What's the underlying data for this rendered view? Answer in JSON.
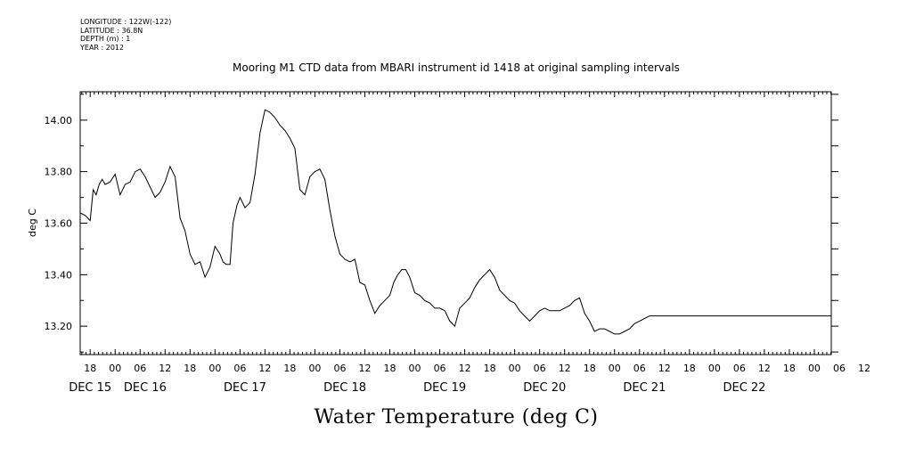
{
  "header_info": {
    "longitude": "LONGITUDE : 122W(-122)",
    "latitude": "LATITUDE : 36.8N",
    "depth": "DEPTH (m) : 1",
    "year": "YEAR : 2012"
  },
  "chart_data": {
    "type": "line",
    "title": "Mooring M1 CTD data from MBARI instrument id 1418 at original sampling intervals",
    "ylabel": "deg C",
    "xlabel": "Water Temperature (deg C)",
    "ylim": [
      13.09,
      14.11
    ],
    "xlim": [
      -0.1,
      7.42
    ],
    "yticks": [
      "13.20",
      "13.40",
      "13.60",
      "13.80",
      "14.00"
    ],
    "x_hour_labels": [
      "18",
      "00",
      "06",
      "12",
      "18",
      "00",
      "06",
      "12",
      "18",
      "00",
      "06",
      "12",
      "18",
      "00",
      "06",
      "12",
      "18",
      "00",
      "06",
      "12",
      "18",
      "00",
      "06",
      "12",
      "18",
      "00",
      "06",
      "12",
      "18",
      "00",
      "06",
      "12"
    ],
    "x_day_labels": [
      "DEC 15",
      "DEC 16",
      "DEC 17",
      "DEC 18",
      "DEC 19",
      "DEC 20",
      "DEC 21",
      "DEC 22"
    ],
    "x_units": "days since DEC 15 18:00",
    "series": [
      {
        "name": "",
        "x": [
          -0.1,
          -0.05,
          0.0,
          0.03,
          0.06,
          0.09,
          0.12,
          0.15,
          0.2,
          0.25,
          0.3,
          0.35,
          0.4,
          0.45,
          0.5,
          0.55,
          0.6,
          0.65,
          0.7,
          0.75,
          0.8,
          0.85,
          0.9,
          0.95,
          1.0,
          1.05,
          1.1,
          1.15,
          1.2,
          1.25,
          1.3,
          1.33,
          1.36,
          1.4,
          1.43,
          1.47,
          1.5,
          1.55,
          1.6,
          1.65,
          1.7,
          1.75,
          1.8,
          1.85,
          1.9,
          1.95,
          2.0,
          2.05,
          2.1,
          2.15,
          2.2,
          2.25,
          2.3,
          2.35,
          2.4,
          2.45,
          2.5,
          2.55,
          2.6,
          2.65,
          2.7,
          2.75,
          2.8,
          2.85,
          2.9,
          2.95,
          3.0,
          3.04,
          3.08,
          3.12,
          3.16,
          3.2,
          3.25,
          3.3,
          3.35,
          3.4,
          3.45,
          3.5,
          3.55,
          3.6,
          3.65,
          3.7,
          3.75,
          3.8,
          3.85,
          3.9,
          3.95,
          4.0,
          4.05,
          4.1,
          4.15,
          4.2,
          4.25,
          4.3,
          4.35,
          4.4,
          4.45,
          4.5,
          4.55,
          4.6,
          4.65,
          4.7,
          4.75,
          4.8,
          4.85,
          4.9,
          4.95,
          5.0,
          5.05,
          5.1,
          5.15,
          5.2,
          5.25,
          5.3,
          5.35,
          5.4,
          5.45,
          5.5,
          5.55,
          5.6,
          5.65,
          5.7,
          5.75,
          5.8,
          5.85,
          5.9,
          5.95,
          6.0,
          6.05,
          6.1,
          6.15,
          6.2,
          6.25,
          6.3,
          6.35,
          6.4,
          6.45,
          6.5,
          6.55,
          6.6,
          6.65,
          6.7,
          6.75,
          6.8,
          6.85,
          6.9,
          6.95,
          7.0,
          7.05,
          7.1,
          7.15,
          7.2,
          7.25,
          7.3,
          7.35,
          7.42
        ],
        "y": [
          13.64,
          13.63,
          13.61,
          13.73,
          13.71,
          13.75,
          13.77,
          13.75,
          13.76,
          13.79,
          13.71,
          13.75,
          13.76,
          13.8,
          13.81,
          13.78,
          13.74,
          13.7,
          13.72,
          13.76,
          13.82,
          13.78,
          13.62,
          13.57,
          13.48,
          13.44,
          13.45,
          13.39,
          13.43,
          13.51,
          13.48,
          13.45,
          13.44,
          13.44,
          13.6,
          13.67,
          13.7,
          13.66,
          13.68,
          13.79,
          13.95,
          14.04,
          14.03,
          14.01,
          13.98,
          13.96,
          13.93,
          13.89,
          13.73,
          13.71,
          13.78,
          13.8,
          13.81,
          13.77,
          13.65,
          13.55,
          13.48,
          13.46,
          13.45,
          13.46,
          13.37,
          13.36,
          13.3,
          13.25,
          13.28,
          13.3,
          13.32,
          13.37,
          13.4,
          13.42,
          13.42,
          13.39,
          13.33,
          13.32,
          13.3,
          13.29,
          13.27,
          13.27,
          13.26,
          13.22,
          13.2,
          13.27,
          13.29,
          13.31,
          13.35,
          13.38,
          13.4,
          13.42,
          13.39,
          13.34,
          13.32,
          13.3,
          13.29,
          13.26,
          13.24,
          13.22,
          13.24,
          13.26,
          13.27,
          13.26,
          13.26,
          13.26,
          13.27,
          13.28,
          13.3,
          13.31,
          13.25,
          13.22,
          13.18,
          13.19,
          13.19,
          13.18,
          13.17,
          13.17,
          13.18,
          13.19,
          13.21,
          13.22,
          13.23,
          13.24,
          13.24,
          13.24,
          13.24,
          13.24,
          13.24,
          13.24,
          13.24,
          13.24,
          13.24,
          13.24,
          13.24,
          13.24,
          13.24,
          13.24,
          13.24,
          13.24,
          13.24,
          13.24,
          13.24,
          13.24,
          13.24,
          13.24,
          13.24,
          13.24,
          13.24,
          13.24,
          13.24,
          13.24,
          13.24,
          13.24,
          13.24,
          13.24,
          13.24,
          13.24,
          13.24,
          13.24
        ],
        "color": "#000000"
      }
    ],
    "grid": false
  }
}
